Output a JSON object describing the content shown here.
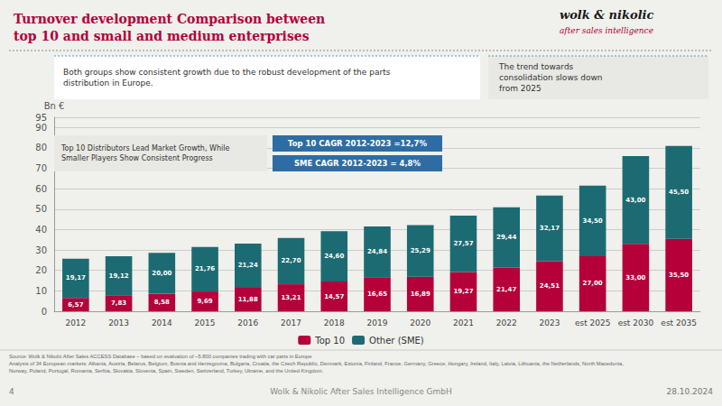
{
  "chart_data": {
    "type": "bar",
    "title": "Turnover development Comparison between\ntop 10 and small and medium enterprises",
    "categories": [
      "2012",
      "2013",
      "2014",
      "2015",
      "2016",
      "2017",
      "2018",
      "2019",
      "2020",
      "2021",
      "2022",
      "2023",
      "est 2025",
      "est 2030",
      "est 2035"
    ],
    "series": [
      {
        "name": "Top 10",
        "color": "#b5003a",
        "values": [
          6.57,
          7.83,
          8.58,
          9.69,
          11.88,
          13.21,
          14.57,
          16.65,
          16.89,
          19.27,
          21.47,
          24.51,
          27.0,
          33.0,
          35.5
        ],
        "value_labels": [
          "6,57",
          "7,83",
          "8,58",
          "9,69",
          "11,88",
          "13,21",
          "14,57",
          "16,65",
          "16,89",
          "19,27",
          "21,47",
          "24,51",
          "27,00",
          "33,00",
          "35,50"
        ]
      },
      {
        "name": "Other (SME)",
        "color": "#1d6b72",
        "values": [
          19.17,
          19.12,
          20.0,
          21.76,
          21.24,
          22.7,
          24.6,
          24.84,
          25.29,
          27.57,
          29.44,
          32.17,
          34.5,
          43.0,
          45.5
        ],
        "value_labels": [
          "19,17",
          "19,12",
          "20,00",
          "21,76",
          "21,24",
          "22,70",
          "24,60",
          "24,84",
          "25,29",
          "27,57",
          "29,44",
          "32,17",
          "34,50",
          "43,00",
          "45,50"
        ]
      }
    ],
    "stacked": true,
    "data_labels": true,
    "ylabel": "Bn €",
    "ylim": [
      0,
      95
    ],
    "yticks": [
      0,
      10,
      20,
      30,
      40,
      50,
      60,
      70,
      80,
      90
    ],
    "grid": true,
    "legend": "bottom",
    "annotations": [
      "wolk & nikolic",
      "after sales intelligence",
      "Both groups show consistent growth due to the robust development of the parts\ndistribution in Europe.",
      "The trend towards\nconsolidation slows down\nfrom 2025",
      "Top 10 Distributors Lead Market Growth, While\nSmaller Players Show Consistent Progress",
      "Top 10 CAGR 2012-2023 =12,7%",
      "SME CAGR 2012-2023 = 4,8%",
      "Source: Wolk & Nikolic After Sales ACCESS Database – based on evaluation of ~5.800 companies trading with car parts in Europe\nAnalysis of 34 European markets: Albania, Austria, Belarus, Belgium, Bosnia and Herzegovina, Bulgaria, Croatia, the Czech Republic, Denmark, Estonia, Finland, France, Germany, Greece, Hungary, Ireland, Italy, Latvia, Lithuania, the Netherlands, North Macedonia,\nNorway, Poland, Portugal, Romania, Serbia, Slovakia, Slovenia, Spain, Sweden, Switzerland, Turkey, Ukraine, and the United Kingdom.",
      "4",
      "Wolk & Nikolic After Sales Intelligence GmbH",
      "28.10.2024"
    ]
  }
}
